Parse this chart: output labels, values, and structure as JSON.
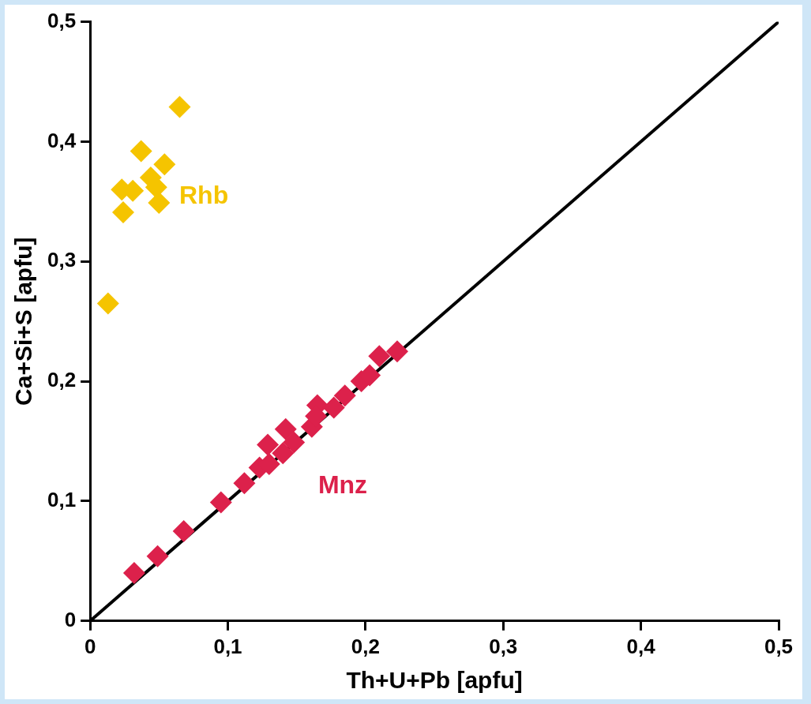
{
  "chart_data": {
    "type": "scatter",
    "xlabel": "Th+U+Pb [apfu]",
    "ylabel": "Ca+Si+S [apfu]",
    "xlim": [
      0,
      0.5
    ],
    "ylim": [
      0,
      0.5
    ],
    "xticks": [
      0,
      {
        "value": 0.1,
        "label": "0,1"
      },
      {
        "value": 0.2,
        "label": "0,2"
      },
      {
        "value": 0.3,
        "label": "0,3"
      },
      {
        "value": 0.4,
        "label": "0,4"
      },
      {
        "value": 0.5,
        "label": "0,5"
      }
    ],
    "yticks": [
      0,
      {
        "value": 0.1,
        "label": "0,1"
      },
      {
        "value": 0.2,
        "label": "0,2"
      },
      {
        "value": 0.3,
        "label": "0,3"
      },
      {
        "value": 0.4,
        "label": "0,4"
      },
      {
        "value": 0.5,
        "label": "0,5"
      }
    ],
    "grid": false,
    "legend": false,
    "marker": "diamond",
    "series": [
      {
        "type": "line",
        "color": "#000000",
        "x": [
          0,
          0.5
        ],
        "values": [
          0,
          0.5
        ],
        "marker": "none",
        "line_style": "solid"
      },
      {
        "name": "Rhb",
        "color": "#f5c400",
        "x": [
          0.065,
          0.037,
          0.054,
          0.044,
          0.048,
          0.023,
          0.031,
          0.05,
          0.024,
          0.013
        ],
        "values": [
          0.429,
          0.392,
          0.381,
          0.37,
          0.362,
          0.36,
          0.359,
          0.349,
          0.341,
          0.265
        ]
      },
      {
        "name": "Mnz",
        "color": "#dc214b",
        "x": [
          0.032,
          0.049,
          0.068,
          0.095,
          0.112,
          0.123,
          0.13,
          0.129,
          0.14,
          0.142,
          0.148,
          0.161,
          0.165,
          0.164,
          0.177,
          0.185,
          0.197,
          0.203,
          0.21,
          0.223
        ],
        "values": [
          0.04,
          0.054,
          0.075,
          0.099,
          0.115,
          0.128,
          0.131,
          0.147,
          0.14,
          0.16,
          0.149,
          0.162,
          0.18,
          0.171,
          0.178,
          0.188,
          0.2,
          0.205,
          0.221,
          0.225
        ]
      }
    ]
  }
}
